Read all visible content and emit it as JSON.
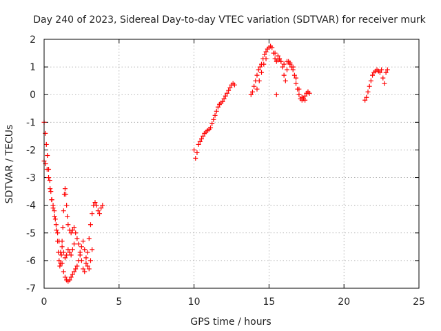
{
  "chart_data": {
    "type": "scatter",
    "title": "Day 240 of 2023, Sidereal Day-to-day VTEC variation (SDTVAR) for receiver murk",
    "xlabel": "GPS time / hours",
    "ylabel": "SDTVAR / TECUs",
    "xlim": [
      0,
      25
    ],
    "ylim": [
      -7,
      2
    ],
    "xticks": [
      0,
      5,
      10,
      15,
      20,
      25
    ],
    "yticks": [
      -7,
      -6,
      -5,
      -4,
      -3,
      -2,
      -1,
      0,
      1,
      2
    ],
    "grid": true,
    "marker": "+",
    "series": [
      {
        "name": "SDTVAR",
        "color": "#ff0000",
        "segments": [
          {
            "x": [
              0.0,
              0.08,
              0.15,
              0.22,
              0.3,
              0.38,
              0.45,
              0.52,
              0.6,
              0.68,
              0.75,
              0.82,
              0.9,
              0.95,
              1.0,
              1.05,
              1.1,
              1.15,
              1.2,
              1.25,
              1.3,
              1.35,
              1.4,
              1.45,
              1.5,
              1.55,
              1.6,
              1.7,
              1.8,
              1.9,
              2.0,
              2.1,
              2.2,
              2.3,
              2.4,
              2.5,
              2.6,
              2.7,
              2.8,
              2.9,
              3.0,
              3.1,
              3.2,
              3.3,
              3.4,
              3.5,
              3.6,
              3.7,
              3.8,
              3.9
            ],
            "y": [
              -1.0,
              -1.4,
              -1.8,
              -2.2,
              -2.7,
              -3.1,
              -3.5,
              -3.8,
              -4.0,
              -4.2,
              -4.5,
              -4.9,
              -5.3,
              -5.7,
              -6.0,
              -6.2,
              -6.1,
              -5.8,
              -5.3,
              -4.8,
              -4.2,
              -3.6,
              -3.4,
              -3.6,
              -4.0,
              -4.4,
              -4.7,
              -4.9,
              -5.0,
              -4.9,
              -4.8,
              -5.0,
              -5.2,
              -5.4,
              -5.7,
              -6.0,
              -6.3,
              -6.4,
              -6.1,
              -5.7,
              -5.2,
              -4.7,
              -4.3,
              -4.0,
              -3.9,
              -4.0,
              -4.2,
              -4.3,
              -4.1,
              -4.0
            ]
          },
          {
            "x": [
              0.0,
              0.1,
              0.2,
              0.3,
              0.4,
              0.5,
              0.6,
              0.7,
              0.8,
              0.9,
              1.0,
              1.1,
              1.2,
              1.3,
              1.4,
              1.5,
              1.6,
              1.7,
              1.8,
              1.9,
              2.0,
              2.1,
              2.2,
              2.3,
              2.4,
              2.5,
              2.6,
              2.7,
              2.8,
              2.9,
              3.0,
              3.1,
              3.2
            ],
            "y": [
              -2.4,
              -2.5,
              -2.7,
              -3.0,
              -3.4,
              -3.8,
              -4.1,
              -4.4,
              -4.7,
              -5.0,
              -5.3,
              -5.7,
              -6.1,
              -6.4,
              -6.6,
              -6.7,
              -6.75,
              -6.7,
              -6.6,
              -6.5,
              -6.4,
              -6.3,
              -6.2,
              -6.0,
              -5.8,
              -5.5,
              -5.3,
              -5.6,
              -5.9,
              -6.2,
              -6.3,
              -6.0,
              -5.6
            ]
          },
          {
            "x": [
              1.2,
              1.3,
              1.4,
              1.5,
              1.6,
              1.7,
              1.8,
              1.9,
              2.0
            ],
            "y": [
              -5.5,
              -5.7,
              -5.9,
              -5.8,
              -5.6,
              -5.7,
              -5.8,
              -5.6,
              -5.4
            ]
          },
          {
            "x": [
              10.0,
              10.1,
              10.2,
              10.3,
              10.4,
              10.5,
              10.6,
              10.7,
              10.8,
              10.9,
              11.0,
              11.1,
              11.2,
              11.3,
              11.4,
              11.5,
              11.6,
              11.7,
              11.8,
              11.9,
              12.0,
              12.1,
              12.2,
              12.3,
              12.4,
              12.5,
              12.6,
              12.7
            ],
            "y": [
              -2.0,
              -2.3,
              -2.1,
              -1.8,
              -1.7,
              -1.6,
              -1.5,
              -1.4,
              -1.35,
              -1.3,
              -1.25,
              -1.2,
              -1.05,
              -0.9,
              -0.75,
              -0.6,
              -0.45,
              -0.35,
              -0.3,
              -0.25,
              -0.15,
              -0.05,
              0.05,
              0.15,
              0.25,
              0.35,
              0.4,
              0.35
            ]
          },
          {
            "x": [
              13.8,
              13.9,
              14.0,
              14.1,
              14.2,
              14.3,
              14.4,
              14.5,
              14.6,
              14.7,
              14.8,
              14.9,
              15.0,
              15.1,
              15.2,
              15.3,
              15.4,
              15.5,
              15.6,
              15.7,
              15.8,
              15.9,
              16.0,
              16.1,
              16.2,
              16.3,
              16.4,
              16.5,
              16.6,
              16.7,
              16.8,
              16.9,
              17.0,
              17.1,
              17.2,
              17.3,
              17.4,
              17.5,
              17.6,
              17.7
            ],
            "y": [
              0.0,
              0.1,
              0.3,
              0.5,
              0.7,
              0.9,
              1.0,
              1.1,
              1.3,
              1.45,
              1.55,
              1.65,
              1.7,
              1.75,
              1.7,
              1.5,
              1.3,
              1.2,
              1.25,
              1.3,
              1.2,
              1.0,
              0.7,
              0.5,
              0.9,
              1.2,
              1.1,
              1.0,
              0.9,
              0.7,
              0.4,
              0.2,
              0.0,
              -0.15,
              -0.2,
              -0.15,
              -0.05,
              0.05,
              0.1,
              0.05
            ]
          },
          {
            "x": [
              14.2,
              14.35,
              14.5,
              14.65,
              14.8,
              15.4,
              15.6,
              15.8,
              16.0,
              16.2,
              16.4,
              16.6,
              16.8,
              17.0,
              17.2,
              17.4,
              17.6
            ],
            "y": [
              0.2,
              0.5,
              0.8,
              1.1,
              1.3,
              1.5,
              1.4,
              1.2,
              1.1,
              1.2,
              1.15,
              1.0,
              0.6,
              0.2,
              -0.1,
              -0.2,
              0.1
            ]
          },
          {
            "x": [
              15.5
            ],
            "y": [
              0.0
            ]
          },
          {
            "x": [
              21.4,
              21.5,
              21.6,
              21.7,
              21.8,
              21.9,
              22.0,
              22.1,
              22.2,
              22.3,
              22.4,
              22.5,
              22.6,
              22.7,
              22.8,
              22.9
            ],
            "y": [
              -0.2,
              -0.1,
              0.1,
              0.3,
              0.5,
              0.7,
              0.8,
              0.85,
              0.9,
              0.85,
              0.8,
              0.9,
              0.6,
              0.4,
              0.8,
              0.9
            ]
          }
        ]
      }
    ]
  }
}
